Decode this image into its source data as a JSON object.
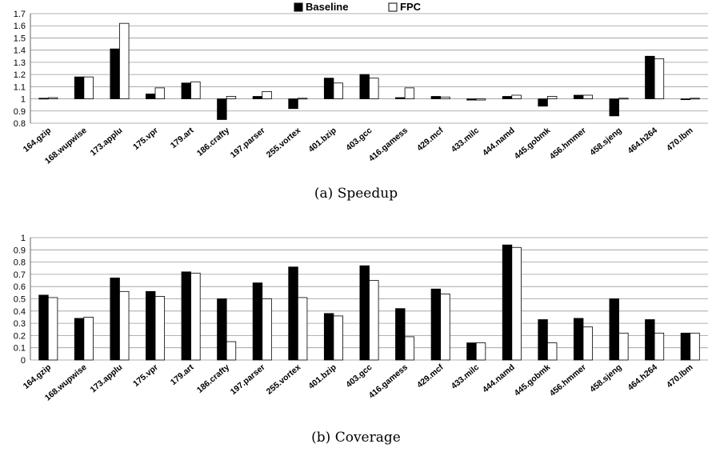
{
  "legend": {
    "baseline_label": "Baseline",
    "fpc_label": "FPC",
    "baseline_color": "#000000",
    "fpc_color": "#ffffff"
  },
  "captions": {
    "a": "(a) Speedup",
    "b": "(b) Coverage"
  },
  "chart_data": [
    {
      "type": "bar",
      "title": "",
      "xlabel": "",
      "ylabel": "",
      "ylim": [
        0.8,
        1.7
      ],
      "yticks": [
        "0.8",
        "0.9",
        "1",
        "1.1",
        "1.2",
        "1.3",
        "1.4",
        "1.5",
        "1.6",
        "1.7"
      ],
      "grid": true,
      "legend_position": "top-center",
      "categories": [
        "164.gzip",
        "168.wupwise",
        "173.applu",
        "175.vpr",
        "179.art",
        "186.crafty",
        "197.parser",
        "255.vortex",
        "401.bzip",
        "403.gcc",
        "416.gamess",
        "429.mcf",
        "433.milc",
        "444.namd",
        "445.gobmk",
        "456.hmmer",
        "458.sjeng",
        "464.h264",
        "470.lbm"
      ],
      "series": [
        {
          "name": "Baseline",
          "values": [
            1.005,
            1.18,
            1.41,
            1.04,
            1.13,
            0.83,
            1.02,
            0.92,
            1.17,
            1.2,
            1.01,
            1.02,
            0.99,
            1.02,
            0.94,
            1.03,
            0.86,
            1.35,
            1.0
          ]
        },
        {
          "name": "FPC",
          "values": [
            1.01,
            1.18,
            1.62,
            1.09,
            1.14,
            1.02,
            1.06,
            1.005,
            1.13,
            1.17,
            1.09,
            1.015,
            0.99,
            1.03,
            1.02,
            1.03,
            1.005,
            1.33,
            1.005
          ]
        }
      ],
      "baseline_value": 1
    },
    {
      "type": "bar",
      "title": "",
      "xlabel": "",
      "ylabel": "",
      "ylim": [
        0,
        1
      ],
      "yticks": [
        "0",
        "0.1",
        "0.2",
        "0.3",
        "0.4",
        "0.5",
        "0.6",
        "0.7",
        "0.8",
        "0.9",
        "1"
      ],
      "grid": true,
      "categories": [
        "164.gzip",
        "168.wupwise",
        "173.applu",
        "175.vpr",
        "179.art",
        "186.crafty",
        "197.parser",
        "255.vortex",
        "401.bzip",
        "403.gcc",
        "416.gamess",
        "429.mcf",
        "433.milc",
        "444.namd",
        "445.gobmk",
        "456.hmmer",
        "458.sjeng",
        "464.h264",
        "470.lbm"
      ],
      "series": [
        {
          "name": "Baseline",
          "values": [
            0.53,
            0.34,
            0.67,
            0.56,
            0.72,
            0.5,
            0.63,
            0.76,
            0.38,
            0.77,
            0.42,
            0.58,
            0.14,
            0.94,
            0.33,
            0.34,
            0.5,
            0.33,
            0.22
          ]
        },
        {
          "name": "FPC",
          "values": [
            0.51,
            0.35,
            0.56,
            0.52,
            0.71,
            0.15,
            0.5,
            0.51,
            0.36,
            0.65,
            0.19,
            0.54,
            0.14,
            0.92,
            0.14,
            0.27,
            0.22,
            0.22,
            0.22
          ]
        }
      ],
      "baseline_value": 0
    }
  ]
}
